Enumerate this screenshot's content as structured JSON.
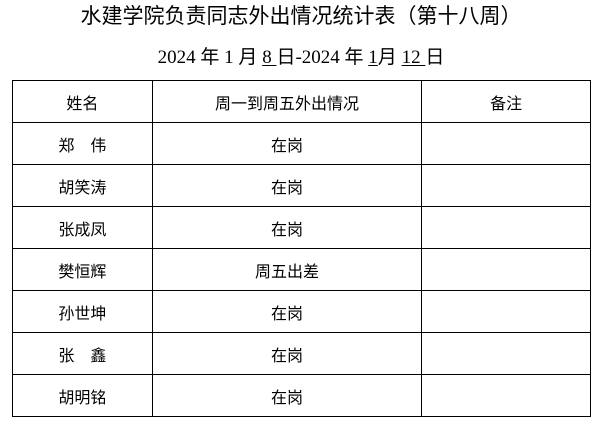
{
  "title": "水建学院负责同志外出情况统计表（第十八周）",
  "subtitle": {
    "start_year": "2024",
    "year_unit": "年",
    "start_month": "1",
    "month_unit": "月",
    "start_day": "8",
    "day_unit": "日",
    "separator": "-2024",
    "end_month": "1",
    "end_day": "12"
  },
  "table": {
    "headers": [
      "姓名",
      "周一到周五外出情况",
      "备注"
    ],
    "rows": [
      {
        "name": "郑　伟",
        "status": "在岗",
        "note": ""
      },
      {
        "name": "胡笑涛",
        "status": "在岗",
        "note": ""
      },
      {
        "name": "张成凤",
        "status": "在岗",
        "note": ""
      },
      {
        "name": "樊恒辉",
        "status": "周五出差",
        "note": ""
      },
      {
        "name": "孙世坤",
        "status": "在岗",
        "note": ""
      },
      {
        "name": "张　鑫",
        "status": "在岗",
        "note": ""
      },
      {
        "name": "胡明铭",
        "status": "在岗",
        "note": ""
      }
    ]
  }
}
